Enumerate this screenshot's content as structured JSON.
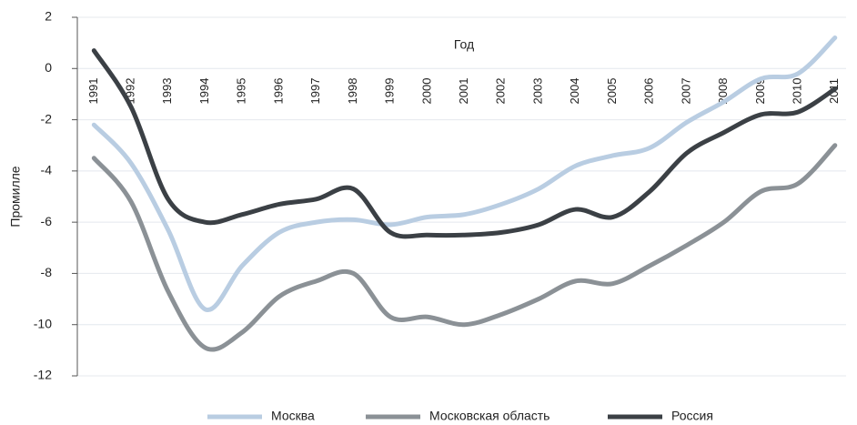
{
  "chart_data": {
    "type": "line",
    "xlabel": "Год",
    "ylabel": "Промилле",
    "x": [
      1991,
      1992,
      1993,
      1994,
      1995,
      1996,
      1997,
      1998,
      1999,
      2000,
      2001,
      2002,
      2003,
      2004,
      2005,
      2006,
      2007,
      2008,
      2009,
      2010,
      2011
    ],
    "series": [
      {
        "name": "Москва",
        "color": "#b9cde2",
        "values": [
          -2.2,
          -3.7,
          -6.3,
          -9.4,
          -7.7,
          -6.4,
          -6.0,
          -5.9,
          -6.1,
          -5.8,
          -5.7,
          -5.3,
          -4.7,
          -3.8,
          -3.4,
          -3.1,
          -2.1,
          -1.3,
          -0.4,
          -0.2,
          1.2
        ]
      },
      {
        "name": "Московская область",
        "color": "#8b9196",
        "values": [
          -3.5,
          -5.2,
          -8.7,
          -10.9,
          -10.3,
          -8.9,
          -8.3,
          -8.0,
          -9.7,
          -9.7,
          -10.0,
          -9.6,
          -9.0,
          -8.3,
          -8.4,
          -7.7,
          -6.9,
          -6.0,
          -4.8,
          -4.5,
          -3.0
        ]
      },
      {
        "name": "Россия",
        "color": "#3b4045",
        "values": [
          0.7,
          -1.5,
          -5.1,
          -6.0,
          -5.7,
          -5.3,
          -5.1,
          -4.7,
          -6.4,
          -6.5,
          -6.5,
          -6.4,
          -6.1,
          -5.5,
          -5.8,
          -4.8,
          -3.3,
          -2.5,
          -1.8,
          -1.7,
          -0.8
        ]
      }
    ],
    "xlim": [
      1990.55,
      2011.3
    ],
    "ylim": [
      -12,
      2
    ],
    "yticks": [
      2,
      0,
      -2,
      -4,
      -6,
      -8,
      -10,
      -12
    ],
    "grid": true
  }
}
